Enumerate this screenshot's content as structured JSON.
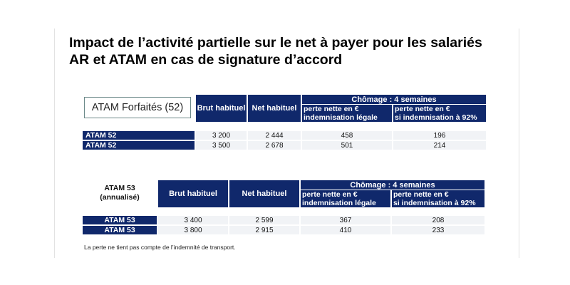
{
  "title": {
    "line1": "Impact de l’activité partielle sur le net à payer pour les salariés",
    "line2": "AR et ATAM en cas de signature d’accord"
  },
  "tables": [
    {
      "label": "ATAM Forfaités (52)",
      "label_sub": "",
      "headers": {
        "brut": "Brut habituel",
        "net": "Net habituel",
        "chomage": "Chômage : 4 semaines",
        "perte_legale": [
          "perte nette en €",
          "indemnisation légale"
        ],
        "perte_92": [
          "perte nette en €",
          "si indemnisation à 92%"
        ]
      },
      "rows": [
        {
          "label": "ATAM 52",
          "brut": "3 200",
          "net": "2 444",
          "perte_legale": "458",
          "perte_92": "196"
        },
        {
          "label": "ATAM 52",
          "brut": "3 500",
          "net": "2 678",
          "perte_legale": "501",
          "perte_92": "214"
        }
      ]
    },
    {
      "label": "ATAM 53",
      "label_sub": "(annualisé)",
      "headers": {
        "brut": "Brut habituel",
        "net": "Net habituel",
        "chomage": "Chômage : 4 semaines",
        "perte_legale": [
          "perte nette en €",
          "indemnisation légale"
        ],
        "perte_92": [
          "perte nette en €",
          "si indemnisation à 92%"
        ]
      },
      "rows": [
        {
          "label": "ATAM 53",
          "brut": "3 400",
          "net": "2 599",
          "perte_legale": "367",
          "perte_92": "208"
        },
        {
          "label": "ATAM 53",
          "brut": "3 800",
          "net": "2 915",
          "perte_legale": "410",
          "perte_92": "233"
        }
      ]
    }
  ],
  "footnote": "La perte ne tient pas compte de l’indemnité de transport.",
  "colors": {
    "header_navy": "#10286b",
    "row_bg": "#f1f3f6"
  }
}
